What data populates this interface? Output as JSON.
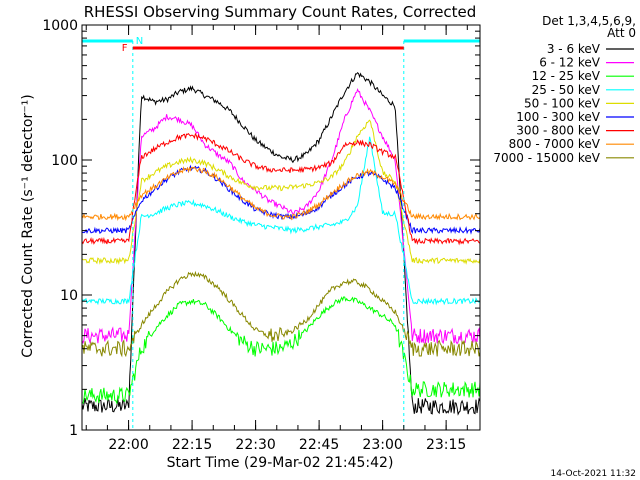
{
  "chart_data": {
    "type": "line",
    "title": "RHESSI Observing Summary Count Rates, Corrected",
    "xlabel": "Start Time (29-Mar-02 21:45:42)",
    "ylabel": "Corrected Count Rate (s⁻¹ detector⁻¹)",
    "yscale": "log",
    "ylim": [
      1,
      1000
    ],
    "xlim": [
      "21:49",
      "23:23"
    ],
    "x_ticks": [
      "22:00",
      "22:15",
      "22:30",
      "22:45",
      "23:00",
      "23:15"
    ],
    "y_ticks": [
      "1",
      "10",
      "100",
      "1000"
    ],
    "grid": false,
    "legend_position": "right",
    "legend_header": [
      "Det 1,3,4,5,6,9,",
      "Att 0"
    ],
    "timestamp": "14-Oct-2021 11:32",
    "annotations": {
      "night_marker": "N",
      "flare_marker": "F",
      "night_intervals": [
        [
          "21:49",
          "22:01"
        ],
        [
          "23:05",
          "23:23"
        ]
      ],
      "flare_interval": [
        "22:01",
        "23:05"
      ]
    },
    "x": [
      "21:50",
      "21:55",
      "22:00",
      "22:03",
      "22:06",
      "22:09",
      "22:12",
      "22:15",
      "22:18",
      "22:21",
      "22:24",
      "22:27",
      "22:30",
      "22:33",
      "22:36",
      "22:39",
      "22:42",
      "22:45",
      "22:48",
      "22:51",
      "22:54",
      "22:57",
      "23:00",
      "23:03",
      "23:07",
      "23:10",
      "23:15",
      "23:20"
    ],
    "series": [
      {
        "name": "3 - 6 keV",
        "color": "#000000",
        "values": [
          1.5,
          1.5,
          1.5,
          300,
          270,
          280,
          320,
          340,
          300,
          270,
          230,
          180,
          140,
          120,
          105,
          100,
          110,
          140,
          210,
          320,
          440,
          380,
          300,
          250,
          1.5,
          1.5,
          1.5,
          1.5
        ]
      },
      {
        "name": "6 - 12 keV",
        "color": "#ff00ff",
        "values": [
          5,
          5,
          5,
          150,
          170,
          210,
          200,
          180,
          130,
          110,
          95,
          70,
          60,
          50,
          45,
          40,
          45,
          60,
          100,
          200,
          330,
          230,
          150,
          100,
          5,
          5,
          5,
          5
        ]
      },
      {
        "name": "12 - 25 keV",
        "color": "#00ff00",
        "values": [
          1.8,
          1.8,
          1.8,
          4,
          5.5,
          7,
          8.5,
          9,
          8.5,
          7,
          5.5,
          4.5,
          4,
          4,
          4,
          4.5,
          5.5,
          7,
          8.5,
          9.5,
          9,
          8,
          7,
          6,
          2,
          2,
          2,
          2
        ]
      },
      {
        "name": "25 - 50 keV",
        "color": "#00ffff",
        "values": [
          9,
          9,
          9,
          38,
          40,
          44,
          47,
          48,
          46,
          42,
          38,
          35,
          33,
          32,
          31,
          30,
          31,
          32,
          33,
          35,
          45,
          150,
          40,
          40,
          9,
          9,
          9,
          9
        ]
      },
      {
        "name": "50 - 100 keV",
        "color": "#dddd00",
        "values": [
          18,
          18,
          18,
          70,
          80,
          90,
          97,
          100,
          95,
          85,
          75,
          67,
          63,
          62,
          62,
          63,
          65,
          68,
          75,
          95,
          150,
          200,
          80,
          70,
          18,
          18,
          18,
          18
        ]
      },
      {
        "name": "100 - 300 keV",
        "color": "#0000ff",
        "values": [
          30,
          30,
          30,
          50,
          60,
          72,
          82,
          87,
          83,
          72,
          60,
          50,
          43,
          40,
          38,
          38,
          40,
          45,
          55,
          65,
          75,
          80,
          72,
          62,
          30,
          30,
          30,
          30
        ]
      },
      {
        "name": "300 - 800 keV",
        "color": "#ff0000",
        "values": [
          25,
          25,
          25,
          105,
          120,
          135,
          148,
          152,
          145,
          130,
          115,
          100,
          90,
          85,
          84,
          84,
          85,
          88,
          95,
          130,
          135,
          130,
          115,
          105,
          25,
          25,
          25,
          25
        ]
      },
      {
        "name": "800 - 7000 keV",
        "color": "#ff8800",
        "values": [
          38,
          38,
          38,
          55,
          63,
          73,
          82,
          87,
          83,
          74,
          63,
          52,
          44,
          40,
          38,
          38,
          41,
          47,
          57,
          67,
          77,
          82,
          75,
          66,
          38,
          38,
          38,
          38
        ]
      },
      {
        "name": "7000 - 15000 keV",
        "color": "#888800",
        "values": [
          4,
          4,
          4,
          6,
          8,
          10.5,
          13,
          14.5,
          13.5,
          11.5,
          9,
          7,
          5.5,
          5,
          5,
          5.5,
          6.5,
          8.5,
          11,
          12.5,
          12.5,
          11,
          9,
          7.5,
          4,
          4,
          4,
          4
        ]
      }
    ]
  }
}
